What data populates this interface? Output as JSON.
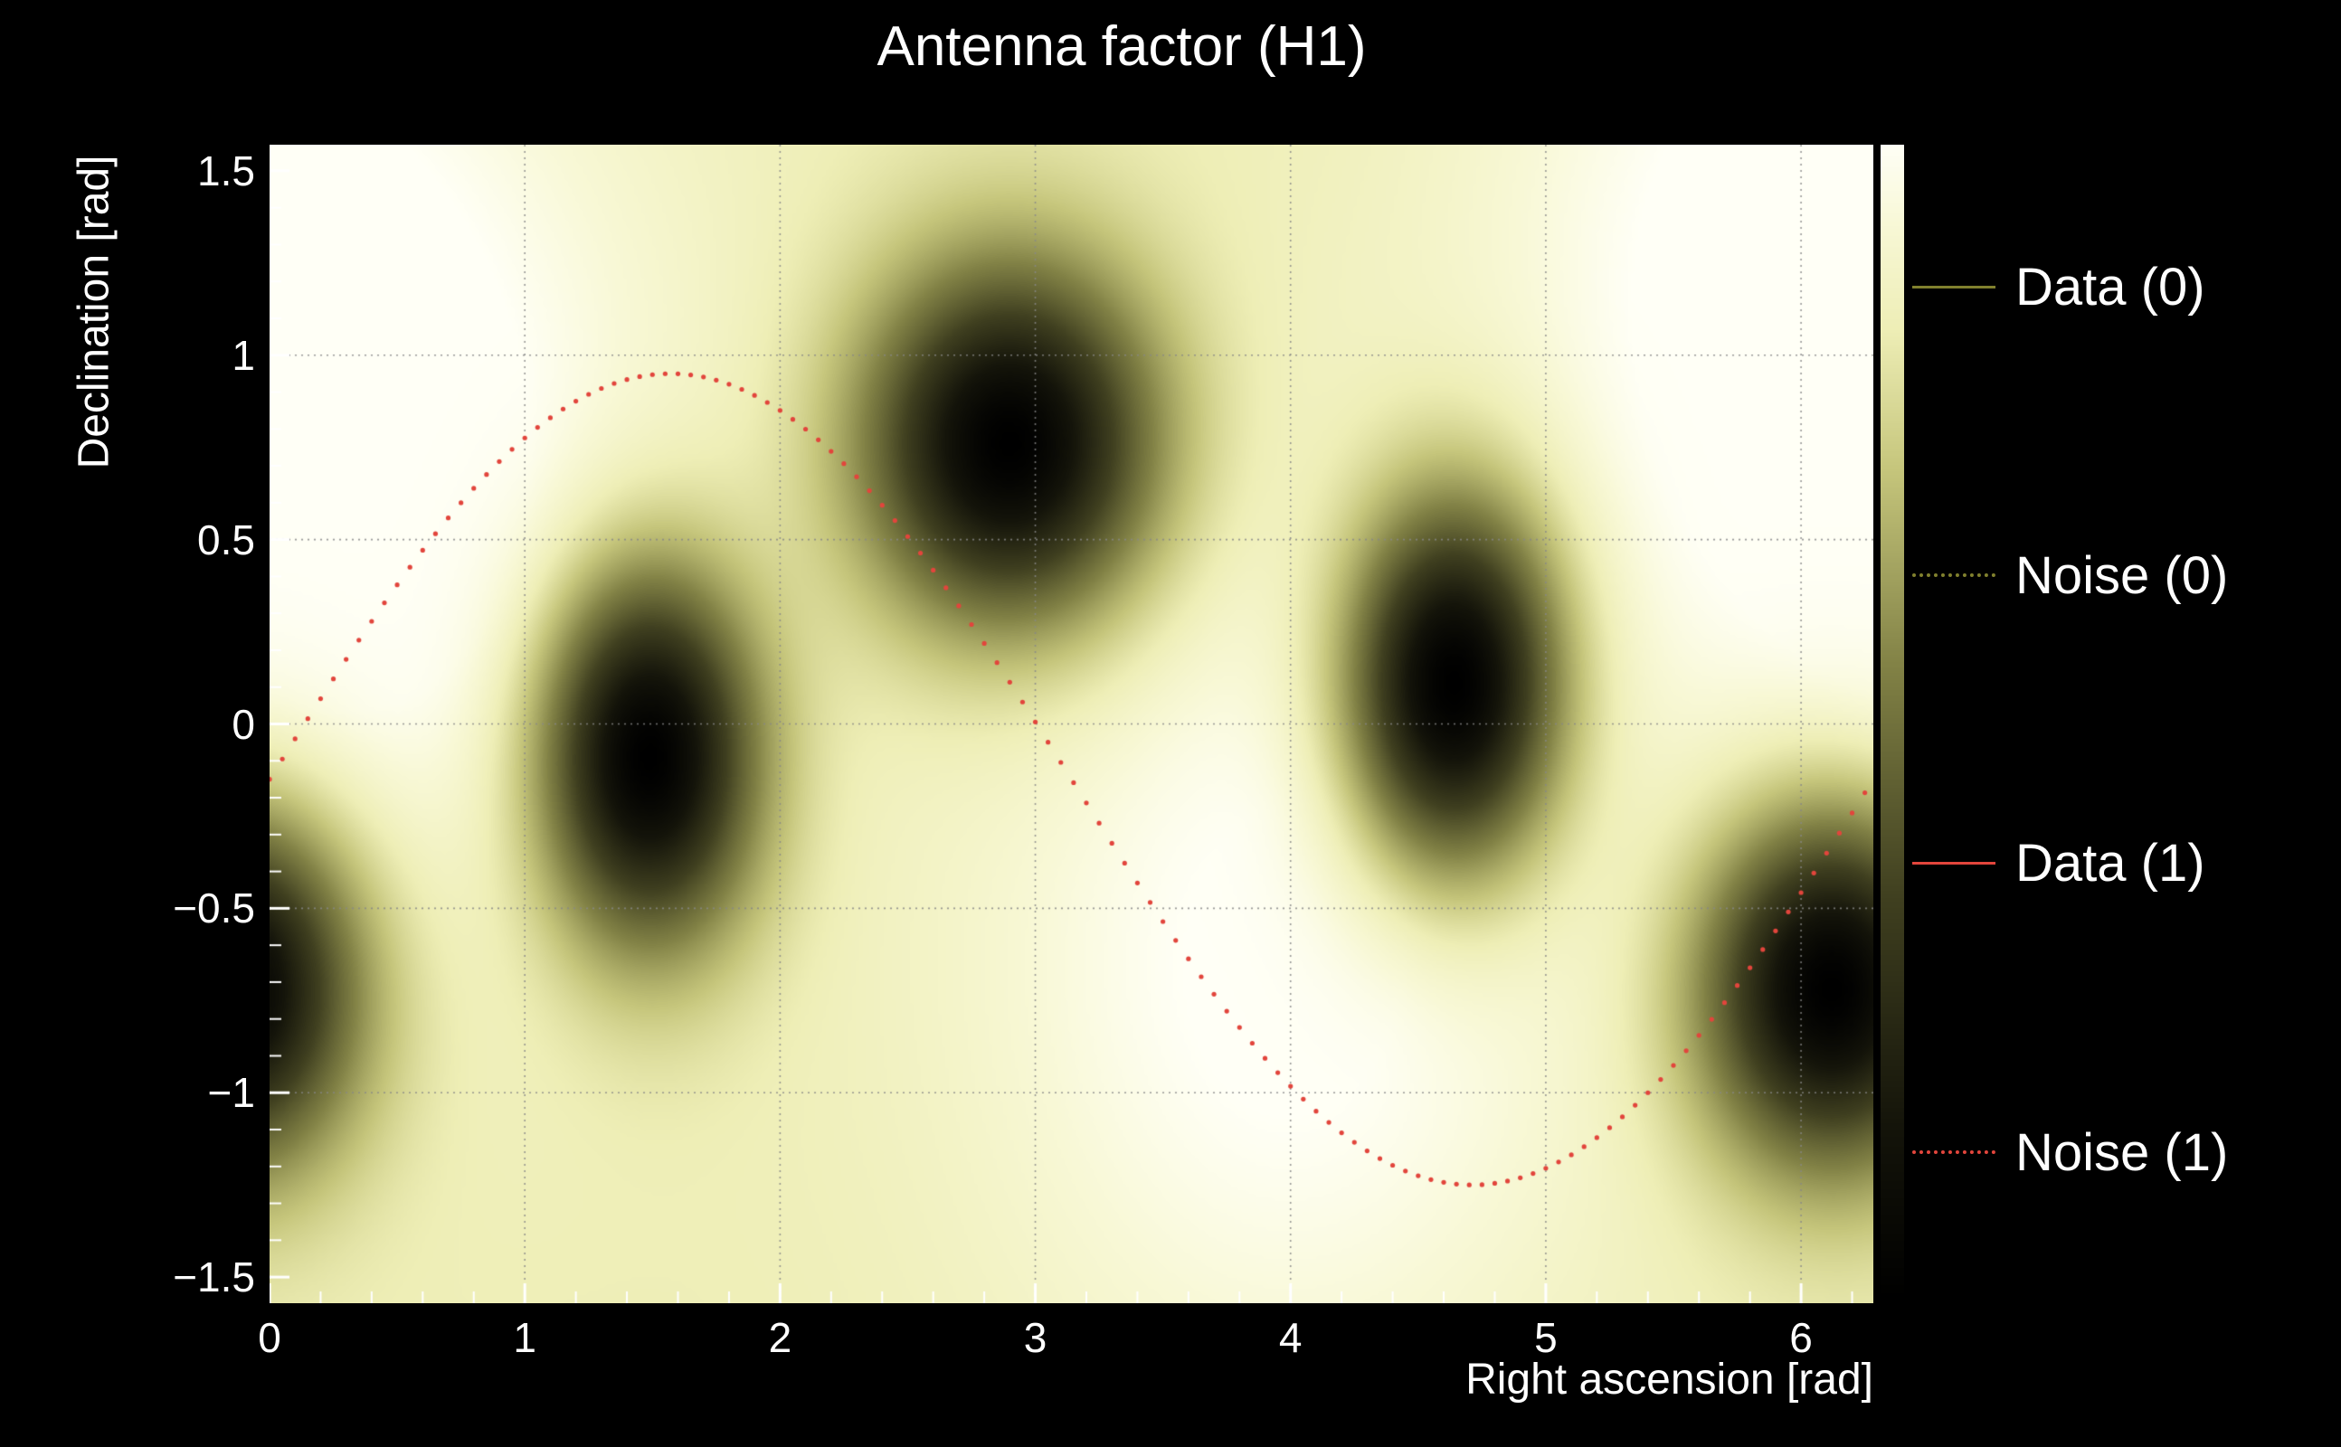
{
  "chart_data": {
    "type": "heatmap",
    "title": "Antenna factor (H1)",
    "xlabel": "Right ascension [rad]",
    "ylabel": "Declination [rad]",
    "x_range": [
      0,
      6.2832
    ],
    "y_range": [
      -1.5708,
      1.5708
    ],
    "x_ticks": [
      0,
      1,
      2,
      3,
      4,
      5,
      6
    ],
    "x_tick_labels": [
      "0",
      "1",
      "2",
      "3",
      "4",
      "5",
      "6"
    ],
    "y_ticks": [
      -1.5,
      -1,
      -0.5,
      0,
      0.5,
      1,
      1.5
    ],
    "y_tick_labels": [
      "−1.5",
      "−1",
      "−0.5",
      "0",
      "0.5",
      "1",
      "1.5"
    ],
    "grid": true,
    "background_color": "#000000",
    "text_color": "#ffffff",
    "base_level": 0.84,
    "colormap": [
      {
        "v": 0.0,
        "c": [
          0,
          0,
          0
        ]
      },
      {
        "v": 0.15,
        "c": [
          20,
          20,
          10
        ]
      },
      {
        "v": 0.35,
        "c": [
          64,
          64,
          32
        ]
      },
      {
        "v": 0.55,
        "c": [
          130,
          130,
          70
        ]
      },
      {
        "v": 0.72,
        "c": [
          198,
          198,
          124
        ]
      },
      {
        "v": 0.84,
        "c": [
          238,
          238,
          182
        ]
      },
      {
        "v": 0.93,
        "c": [
          248,
          248,
          214
        ]
      },
      {
        "v": 1.0,
        "c": [
          255,
          255,
          246
        ]
      }
    ],
    "nulls": [
      {
        "ra": 1.49,
        "dec": -0.09,
        "sigma_ra": 0.3,
        "sigma_dec": 0.36,
        "depth": 1.0
      },
      {
        "ra": 2.9,
        "dec": 0.76,
        "sigma_ra": 0.4,
        "sigma_dec": 0.34,
        "depth": 1.0
      },
      {
        "ra": 4.64,
        "dec": 0.11,
        "sigma_ra": 0.3,
        "sigma_dec": 0.36,
        "depth": 1.0
      },
      {
        "ra": 6.12,
        "dec": -0.72,
        "sigma_ra": 0.36,
        "sigma_dec": 0.34,
        "depth": 1.0
      }
    ],
    "bright_spots": [
      {
        "ra": 0.45,
        "dec": 0.65,
        "sigma": 0.85,
        "gain": 0.18
      },
      {
        "ra": 4.0,
        "dec": -0.65,
        "sigma": 0.85,
        "gain": 0.18
      },
      {
        "ra": 5.8,
        "dec": 1.35,
        "sigma": 0.8,
        "gain": 0.14
      }
    ],
    "overlay_curve": {
      "name": "Noise (1)",
      "style": "dotted",
      "color": "#e2453c",
      "model": "dec = offset + amplitude*sin(ra)",
      "offset": -0.15,
      "amplitude": 1.1,
      "points_step": 0.05
    },
    "legend": [
      {
        "label": "Data (0)",
        "color": "#80802e",
        "style": "solid"
      },
      {
        "label": "Noise (0)",
        "color": "#80802e",
        "style": "dotted"
      },
      {
        "label": "Data (1)",
        "color": "#e2453c",
        "style": "solid"
      },
      {
        "label": "Noise (1)",
        "color": "#e2453c",
        "style": "dotted"
      }
    ],
    "colorbar": {
      "orientation": "vertical",
      "top": "max",
      "bottom": "min"
    }
  }
}
